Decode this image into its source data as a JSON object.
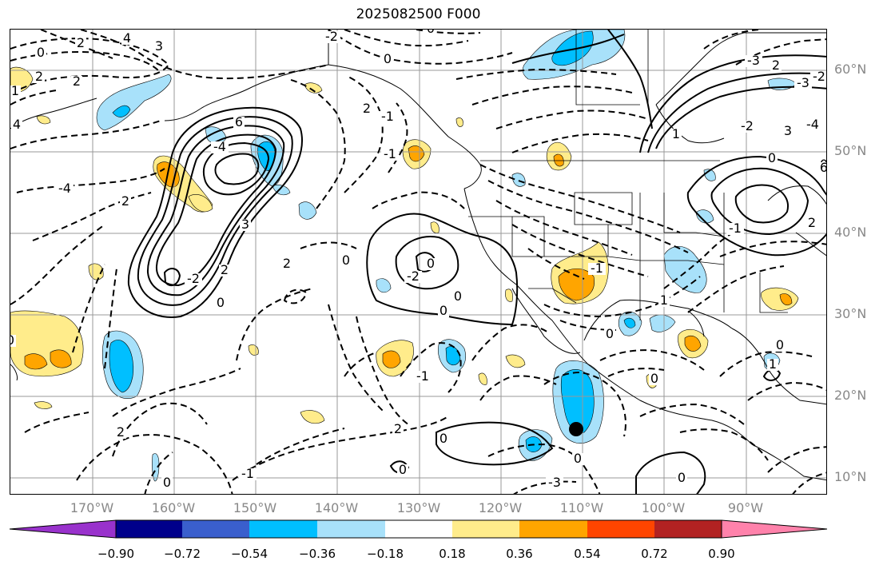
{
  "title": "2025082500 F000",
  "map": {
    "lat_labels": [
      "60°N",
      "50°N",
      "40°N",
      "30°N",
      "20°N",
      "10°N"
    ],
    "lon_labels": [
      "170°W",
      "160°W",
      "150°W",
      "140°W",
      "130°W",
      "120°W",
      "110°W",
      "100°W",
      "90°W"
    ],
    "contour_labels": [
      "0",
      "2",
      "2",
      "2",
      "3",
      "4",
      "4",
      "6",
      "-4",
      "2",
      "3",
      "2",
      "2",
      "0",
      "-2",
      "-4",
      "0",
      "2",
      "-1",
      "2",
      "0",
      "0",
      "-1",
      "0",
      "-2",
      "0",
      "0",
      "-1",
      "0",
      "-2",
      "0",
      "1",
      "0",
      "0",
      "-3",
      "0",
      "1",
      "-1",
      "2",
      "0",
      "0",
      "-2",
      "-3",
      "2",
      "-4",
      "3",
      "1",
      "-2",
      "-3",
      "6",
      "0",
      "0",
      "1",
      "0",
      "-1",
      "2",
      "-1",
      "0"
    ],
    "marker": "black-dot",
    "colors": {
      "neg_light": "#a8e1fa",
      "neg_mid": "#00bfff",
      "pos_light": "#ffec8b",
      "pos_mid": "#ffa500",
      "contour": "#000000",
      "grid": "#999999"
    }
  },
  "colorbar": {
    "ticks": [
      "−0.90",
      "−0.72",
      "−0.54",
      "−0.36",
      "−0.18",
      "0.18",
      "0.36",
      "0.54",
      "0.72",
      "0.90"
    ],
    "colors": [
      "#9932cc",
      "#00008b",
      "#3a5fcd",
      "#00bfff",
      "#a8e1fa",
      "#ffffff",
      "#ffec8b",
      "#ffa500",
      "#ff4500",
      "#b22222",
      "#ff82ab"
    ]
  }
}
